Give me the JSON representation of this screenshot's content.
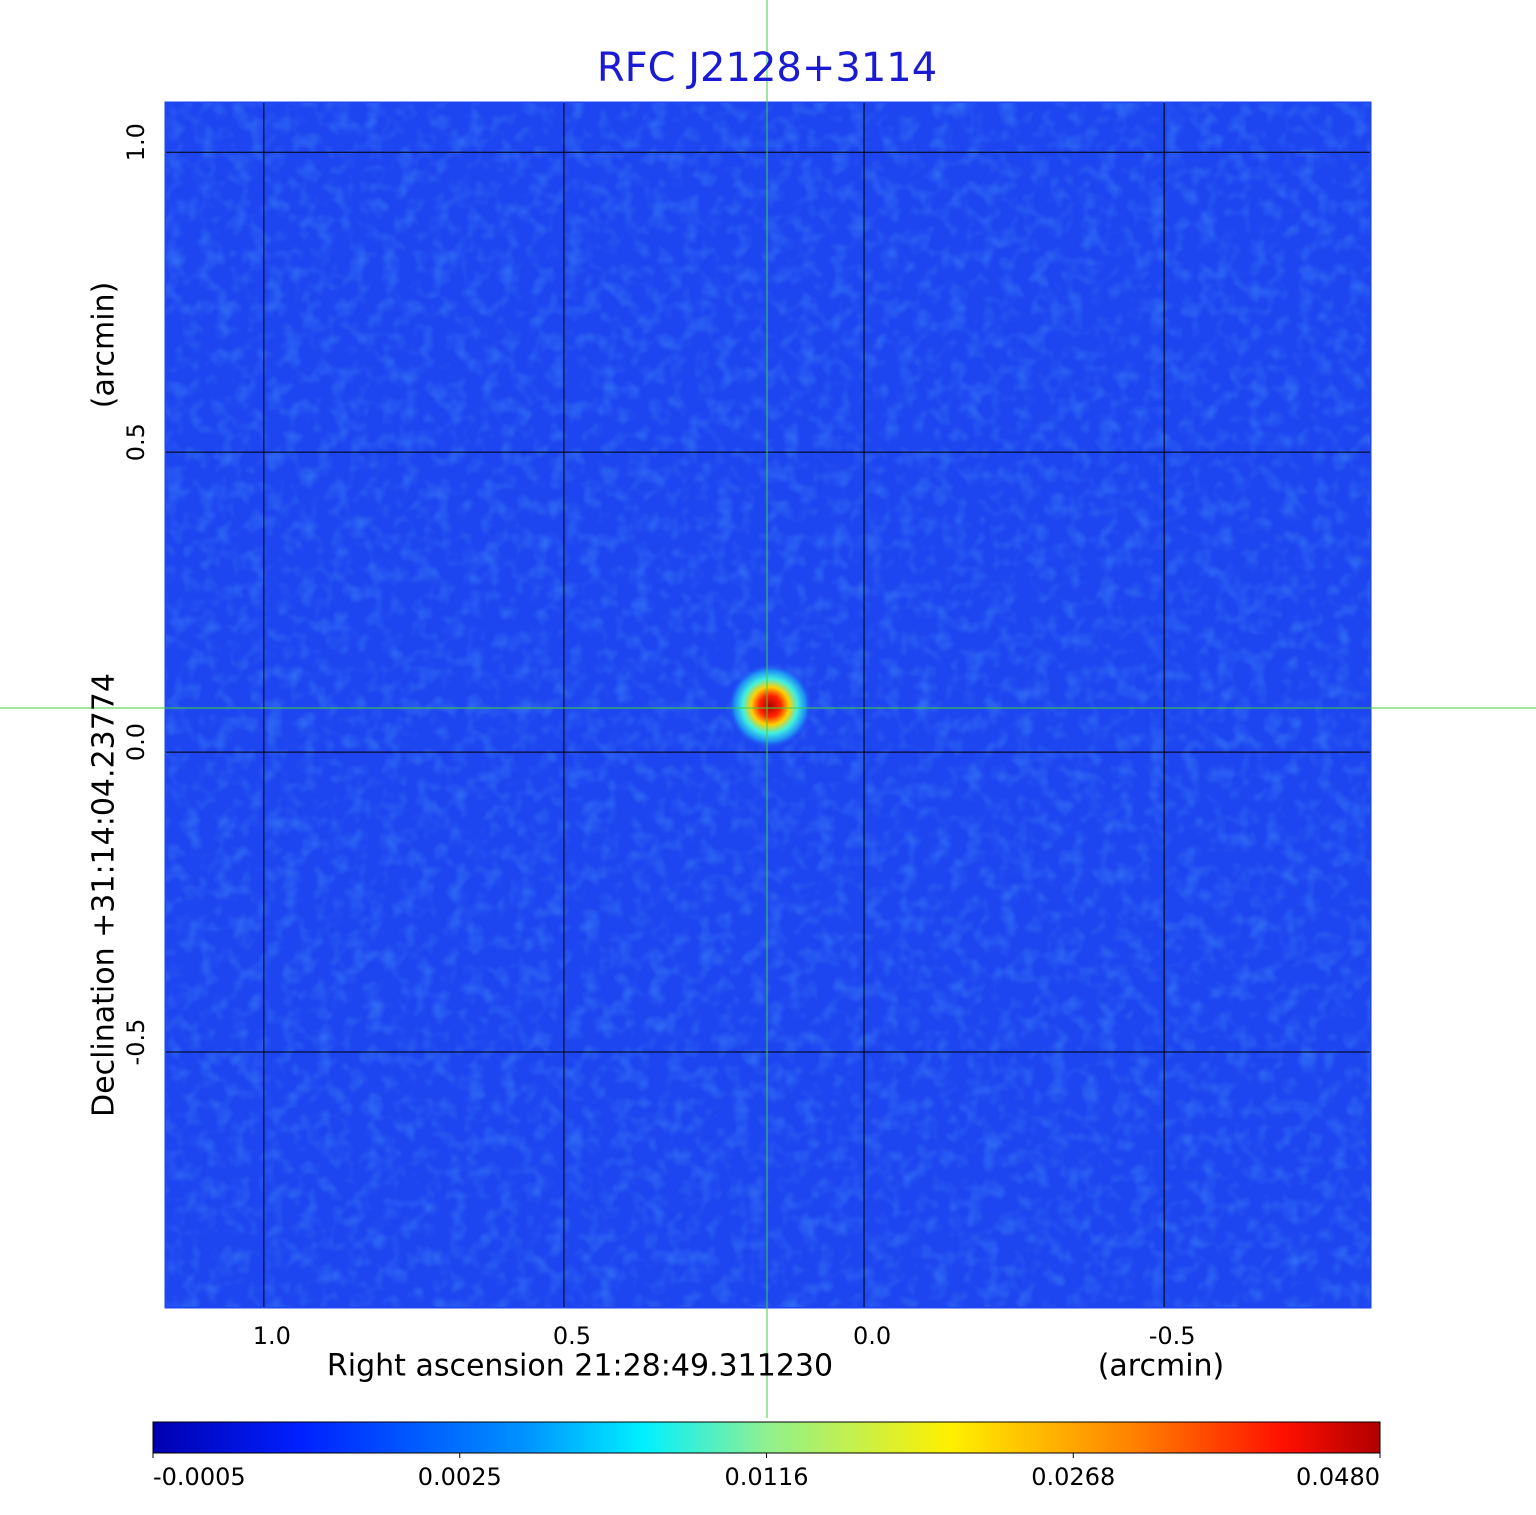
{
  "chart_data": {
    "type": "image",
    "title": "RFC J2128+3114",
    "xlabel": "Right ascension  21:28:49.311230",
    "xunit": "(arcmin)",
    "ylabel": "Declination  +31:14:04.23774",
    "yunit": "(arcmin)",
    "xlim": [
      1.163,
      -0.843
    ],
    "ylim": [
      -0.925,
      1.082
    ],
    "xticks": [
      {
        "value": 1,
        "label": "1.0"
      },
      0.5,
      {
        "value": 0,
        "label": "0.0"
      },
      -0.5
    ],
    "yticks": [
      {
        "value": 1,
        "label": "1.0"
      },
      0.5,
      {
        "value": 0,
        "label": "0.0"
      },
      -0.5
    ],
    "grid": true,
    "colorbar": {
      "ticks": [
        -0.0005,
        0.0025,
        0.0116,
        0.0268,
        {
          "value": 0.048,
          "label": "0.0480"
        }
      ]
    }
  }
}
